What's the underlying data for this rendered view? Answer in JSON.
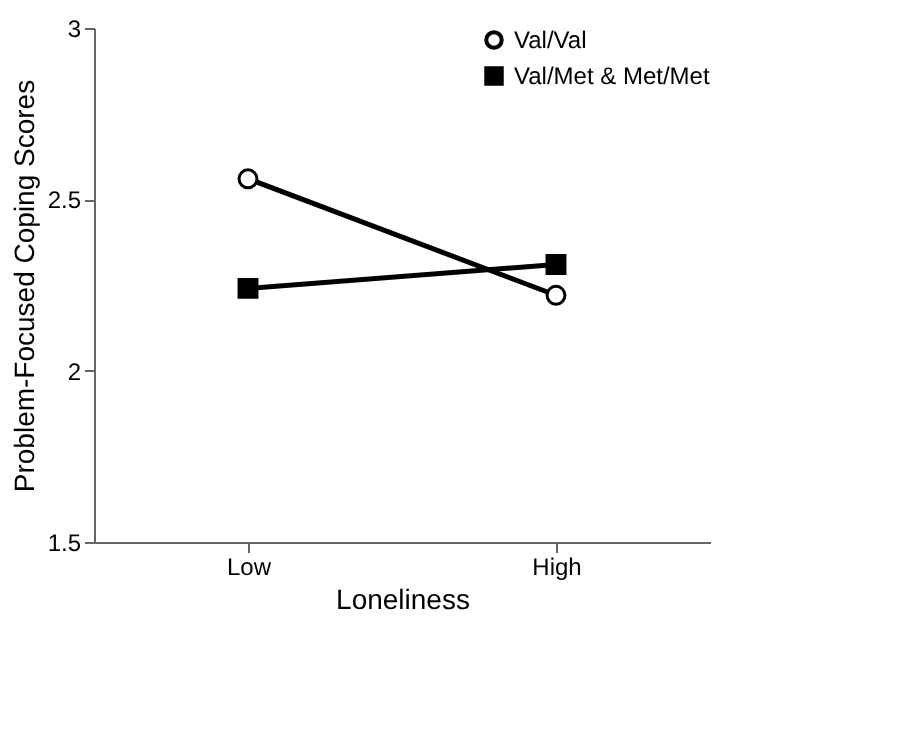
{
  "chart_data": {
    "type": "line",
    "xlabel": "Loneliness",
    "ylabel": "Problem-Focused Coping Scores",
    "categories": [
      "Low",
      "High"
    ],
    "series": [
      {
        "name": "Val/Val",
        "color": "#000000",
        "marker": "circle",
        "values": [
          2.56,
          2.22
        ]
      },
      {
        "name": "Val/Met & Met/Met",
        "color": "#000000",
        "marker": "square",
        "values": [
          2.24,
          2.31
        ]
      }
    ],
    "ylim": [
      1.5,
      3
    ],
    "yticks": [
      1.5,
      2,
      2.5,
      3
    ],
    "grid": false,
    "legend": "top right",
    "line_style": "solid"
  }
}
